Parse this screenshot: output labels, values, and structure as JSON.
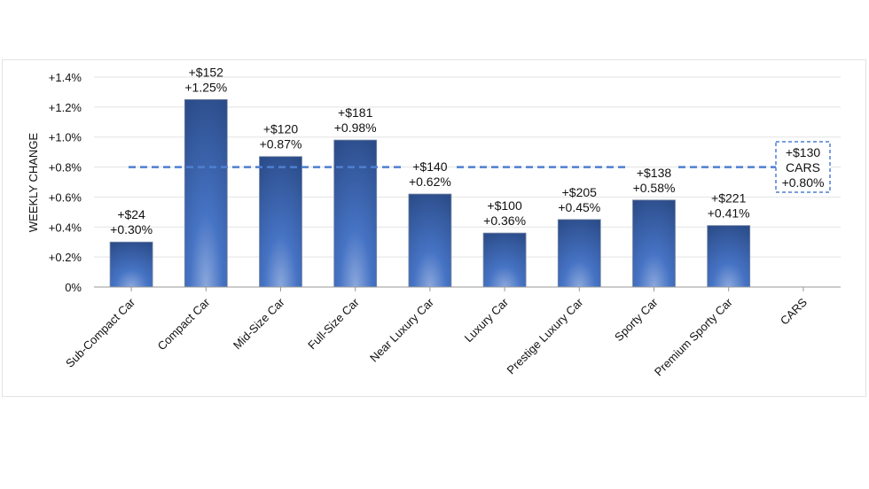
{
  "chart_data": {
    "type": "bar",
    "title": "",
    "xlabel": "",
    "ylabel": "WEEKLY CHANGE",
    "ylim": [
      0,
      1.4
    ],
    "yticks": [
      0,
      0.2,
      0.4,
      0.6,
      0.8,
      1.0,
      1.2,
      1.4
    ],
    "ytick_labels": [
      "0%",
      "+0.2%",
      "+0.4%",
      "+0.6%",
      "+0.8%",
      "+1.0%",
      "+1.2%",
      "+1.4%"
    ],
    "grid": true,
    "categories": [
      "Sub-Compact Car",
      "Compact Car",
      "Mid-Size Car",
      "Full-Size Car",
      "Near Luxury Car",
      "Luxury Car",
      "Prestige Luxury Car",
      "Sporty Car",
      "Premium Sporty Car",
      "CARS"
    ],
    "values": [
      0.3,
      1.25,
      0.87,
      0.98,
      0.62,
      0.36,
      0.45,
      0.58,
      0.41,
      null
    ],
    "dollar_labels": [
      "+$24",
      "+$152",
      "+$120",
      "+$181",
      "+$140",
      "+$100",
      "+$205",
      "+$138",
      "+$221"
    ],
    "percent_labels": [
      "+0.30%",
      "+1.25%",
      "+0.87%",
      "+0.98%",
      "+0.62%",
      "+0.36%",
      "+0.45%",
      "+0.58%",
      "+0.41%"
    ],
    "reference_line": {
      "value": 0.8,
      "style": "dashed",
      "label_lines": [
        "+$130",
        "CARS",
        "+0.80%"
      ]
    },
    "colors": {
      "bar_top": "#2a4a86",
      "bar_mid": "#4673c4",
      "bar_bottom": "#8ba8dc",
      "reference": "#4f7fd0",
      "grid": "#e3e3e3"
    }
  }
}
